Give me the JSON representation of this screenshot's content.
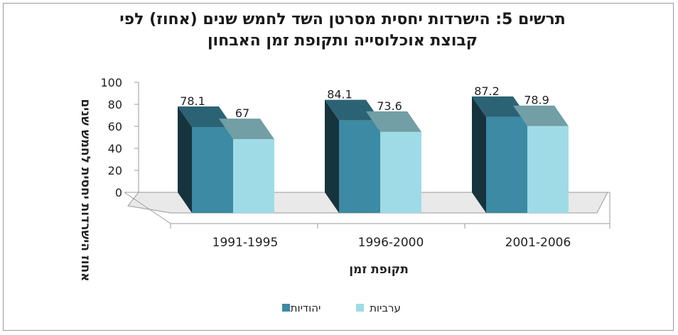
{
  "chart_data": {
    "type": "bar",
    "title_line1": "תרשים 5: הישרדות יחסית מסרטן השד לחמש שנים (אחוז) לפי",
    "title_line2": "קבוצת אוכלוסייה ותקופת זמן האבחון",
    "xlabel": "תקופת זמן",
    "ylabel": "אחוז הישרדות יחסית לחמש שנים",
    "categories": [
      "1991-1995",
      "1996-2000",
      "2001-2006"
    ],
    "yticks": [
      "0",
      "20",
      "40",
      "60",
      "80",
      "100"
    ],
    "ylim": [
      0,
      100
    ],
    "series": [
      {
        "name": "יהודיות",
        "values": [
          78.1,
          84.1,
          87.2
        ],
        "labels": [
          "78.1",
          "84.1",
          "87.2"
        ],
        "color": "#3c8aa3"
      },
      {
        "name": "ערביות",
        "values": [
          67,
          73.6,
          78.9
        ],
        "labels": [
          "67",
          "73.6",
          "78.9"
        ],
        "color": "#9fdbe6"
      }
    ],
    "grid": false,
    "legend_position": "bottom"
  }
}
